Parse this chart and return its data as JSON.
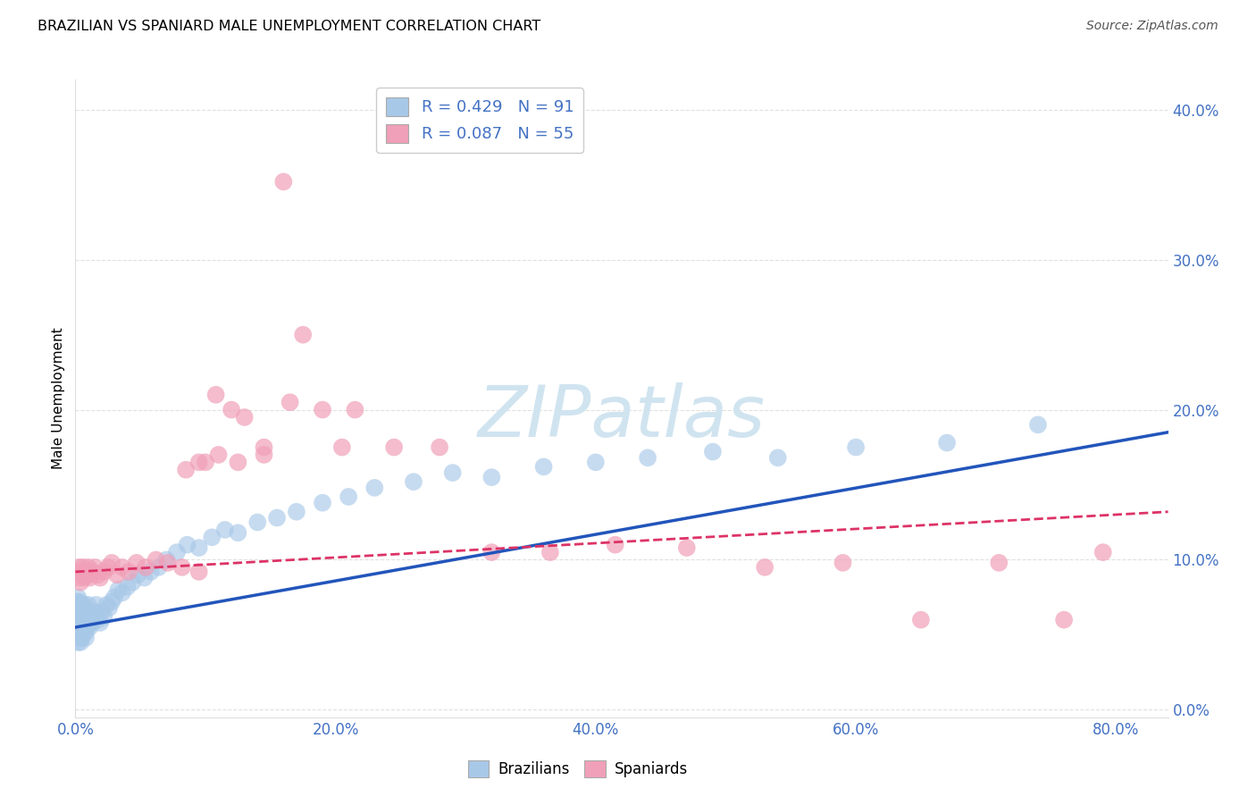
{
  "title": "BRAZILIAN VS SPANIARD MALE UNEMPLOYMENT CORRELATION CHART",
  "source": "Source: ZipAtlas.com",
  "ylabel": "Male Unemployment",
  "xlim": [
    0.0,
    0.84
  ],
  "ylim": [
    -0.005,
    0.42
  ],
  "blue_scatter_color": "#a8c8e8",
  "pink_scatter_color": "#f0a0b8",
  "blue_line_color": "#2255bb",
  "pink_line_color": "#dd3366",
  "watermark_color": "#d0e4f0",
  "brazil_trend_x0": 0.0,
  "brazil_trend_y0": 0.055,
  "brazil_trend_x1": 0.84,
  "brazil_trend_y1": 0.185,
  "spain_trend_x0": 0.0,
  "spain_trend_y0": 0.092,
  "spain_trend_x1": 0.84,
  "spain_trend_y1": 0.132,
  "brazil_r": "0.429",
  "brazil_n": "91",
  "spain_r": "0.087",
  "spain_n": "55",
  "brazil_points_x": [
    0.001,
    0.001,
    0.001,
    0.001,
    0.002,
    0.002,
    0.002,
    0.002,
    0.002,
    0.002,
    0.002,
    0.003,
    0.003,
    0.003,
    0.003,
    0.003,
    0.003,
    0.003,
    0.004,
    0.004,
    0.004,
    0.004,
    0.004,
    0.004,
    0.005,
    0.005,
    0.005,
    0.005,
    0.005,
    0.005,
    0.006,
    0.006,
    0.006,
    0.006,
    0.007,
    0.007,
    0.007,
    0.008,
    0.008,
    0.008,
    0.009,
    0.009,
    0.01,
    0.01,
    0.011,
    0.011,
    0.012,
    0.013,
    0.014,
    0.015,
    0.016,
    0.017,
    0.019,
    0.02,
    0.022,
    0.024,
    0.026,
    0.028,
    0.03,
    0.033,
    0.036,
    0.04,
    0.044,
    0.048,
    0.053,
    0.058,
    0.064,
    0.07,
    0.078,
    0.086,
    0.095,
    0.105,
    0.115,
    0.125,
    0.14,
    0.155,
    0.17,
    0.19,
    0.21,
    0.23,
    0.26,
    0.29,
    0.32,
    0.36,
    0.4,
    0.44,
    0.49,
    0.54,
    0.6,
    0.67,
    0.74
  ],
  "brazil_points_y": [
    0.062,
    0.058,
    0.068,
    0.072,
    0.055,
    0.06,
    0.065,
    0.07,
    0.075,
    0.05,
    0.045,
    0.058,
    0.062,
    0.068,
    0.072,
    0.055,
    0.048,
    0.052,
    0.06,
    0.065,
    0.07,
    0.05,
    0.055,
    0.045,
    0.06,
    0.065,
    0.055,
    0.07,
    0.048,
    0.052,
    0.062,
    0.058,
    0.068,
    0.05,
    0.065,
    0.055,
    0.07,
    0.06,
    0.052,
    0.048,
    0.065,
    0.055,
    0.06,
    0.07,
    0.055,
    0.065,
    0.06,
    0.058,
    0.062,
    0.065,
    0.07,
    0.06,
    0.058,
    0.065,
    0.062,
    0.07,
    0.068,
    0.072,
    0.075,
    0.08,
    0.078,
    0.082,
    0.085,
    0.09,
    0.088,
    0.092,
    0.095,
    0.1,
    0.105,
    0.11,
    0.108,
    0.115,
    0.12,
    0.118,
    0.125,
    0.128,
    0.132,
    0.138,
    0.142,
    0.148,
    0.152,
    0.158,
    0.155,
    0.162,
    0.165,
    0.168,
    0.172,
    0.168,
    0.175,
    0.178,
    0.19
  ],
  "spain_points_x": [
    0.002,
    0.003,
    0.003,
    0.004,
    0.005,
    0.006,
    0.007,
    0.008,
    0.009,
    0.01,
    0.011,
    0.013,
    0.015,
    0.017,
    0.019,
    0.022,
    0.025,
    0.028,
    0.032,
    0.036,
    0.041,
    0.047,
    0.054,
    0.062,
    0.071,
    0.082,
    0.095,
    0.108,
    0.125,
    0.145,
    0.165,
    0.19,
    0.215,
    0.245,
    0.28,
    0.32,
    0.365,
    0.415,
    0.47,
    0.53,
    0.59,
    0.65,
    0.71,
    0.76,
    0.79,
    0.1,
    0.11,
    0.12,
    0.13,
    0.145,
    0.085,
    0.095,
    0.16,
    0.175,
    0.205
  ],
  "spain_points_y": [
    0.092,
    0.088,
    0.095,
    0.085,
    0.09,
    0.095,
    0.088,
    0.092,
    0.09,
    0.095,
    0.088,
    0.092,
    0.095,
    0.09,
    0.088,
    0.092,
    0.095,
    0.098,
    0.09,
    0.095,
    0.092,
    0.098,
    0.095,
    0.1,
    0.098,
    0.095,
    0.092,
    0.21,
    0.165,
    0.175,
    0.205,
    0.2,
    0.2,
    0.175,
    0.175,
    0.105,
    0.105,
    0.11,
    0.108,
    0.095,
    0.098,
    0.06,
    0.098,
    0.06,
    0.105,
    0.165,
    0.17,
    0.2,
    0.195,
    0.17,
    0.16,
    0.165,
    0.352,
    0.25,
    0.175
  ],
  "xtick_vals": [
    0.0,
    0.2,
    0.4,
    0.6,
    0.8
  ],
  "xtick_labels": [
    "0.0%",
    "20.0%",
    "40.0%",
    "60.0%",
    "80.0%"
  ],
  "ytick_vals": [
    0.0,
    0.1,
    0.2,
    0.3,
    0.4
  ],
  "ytick_labels": [
    "0.0%",
    "10.0%",
    "20.0%",
    "30.0%",
    "40.0%"
  ],
  "tick_color": "#4472c4",
  "background_color": "#ffffff",
  "grid_color": "#cccccc"
}
